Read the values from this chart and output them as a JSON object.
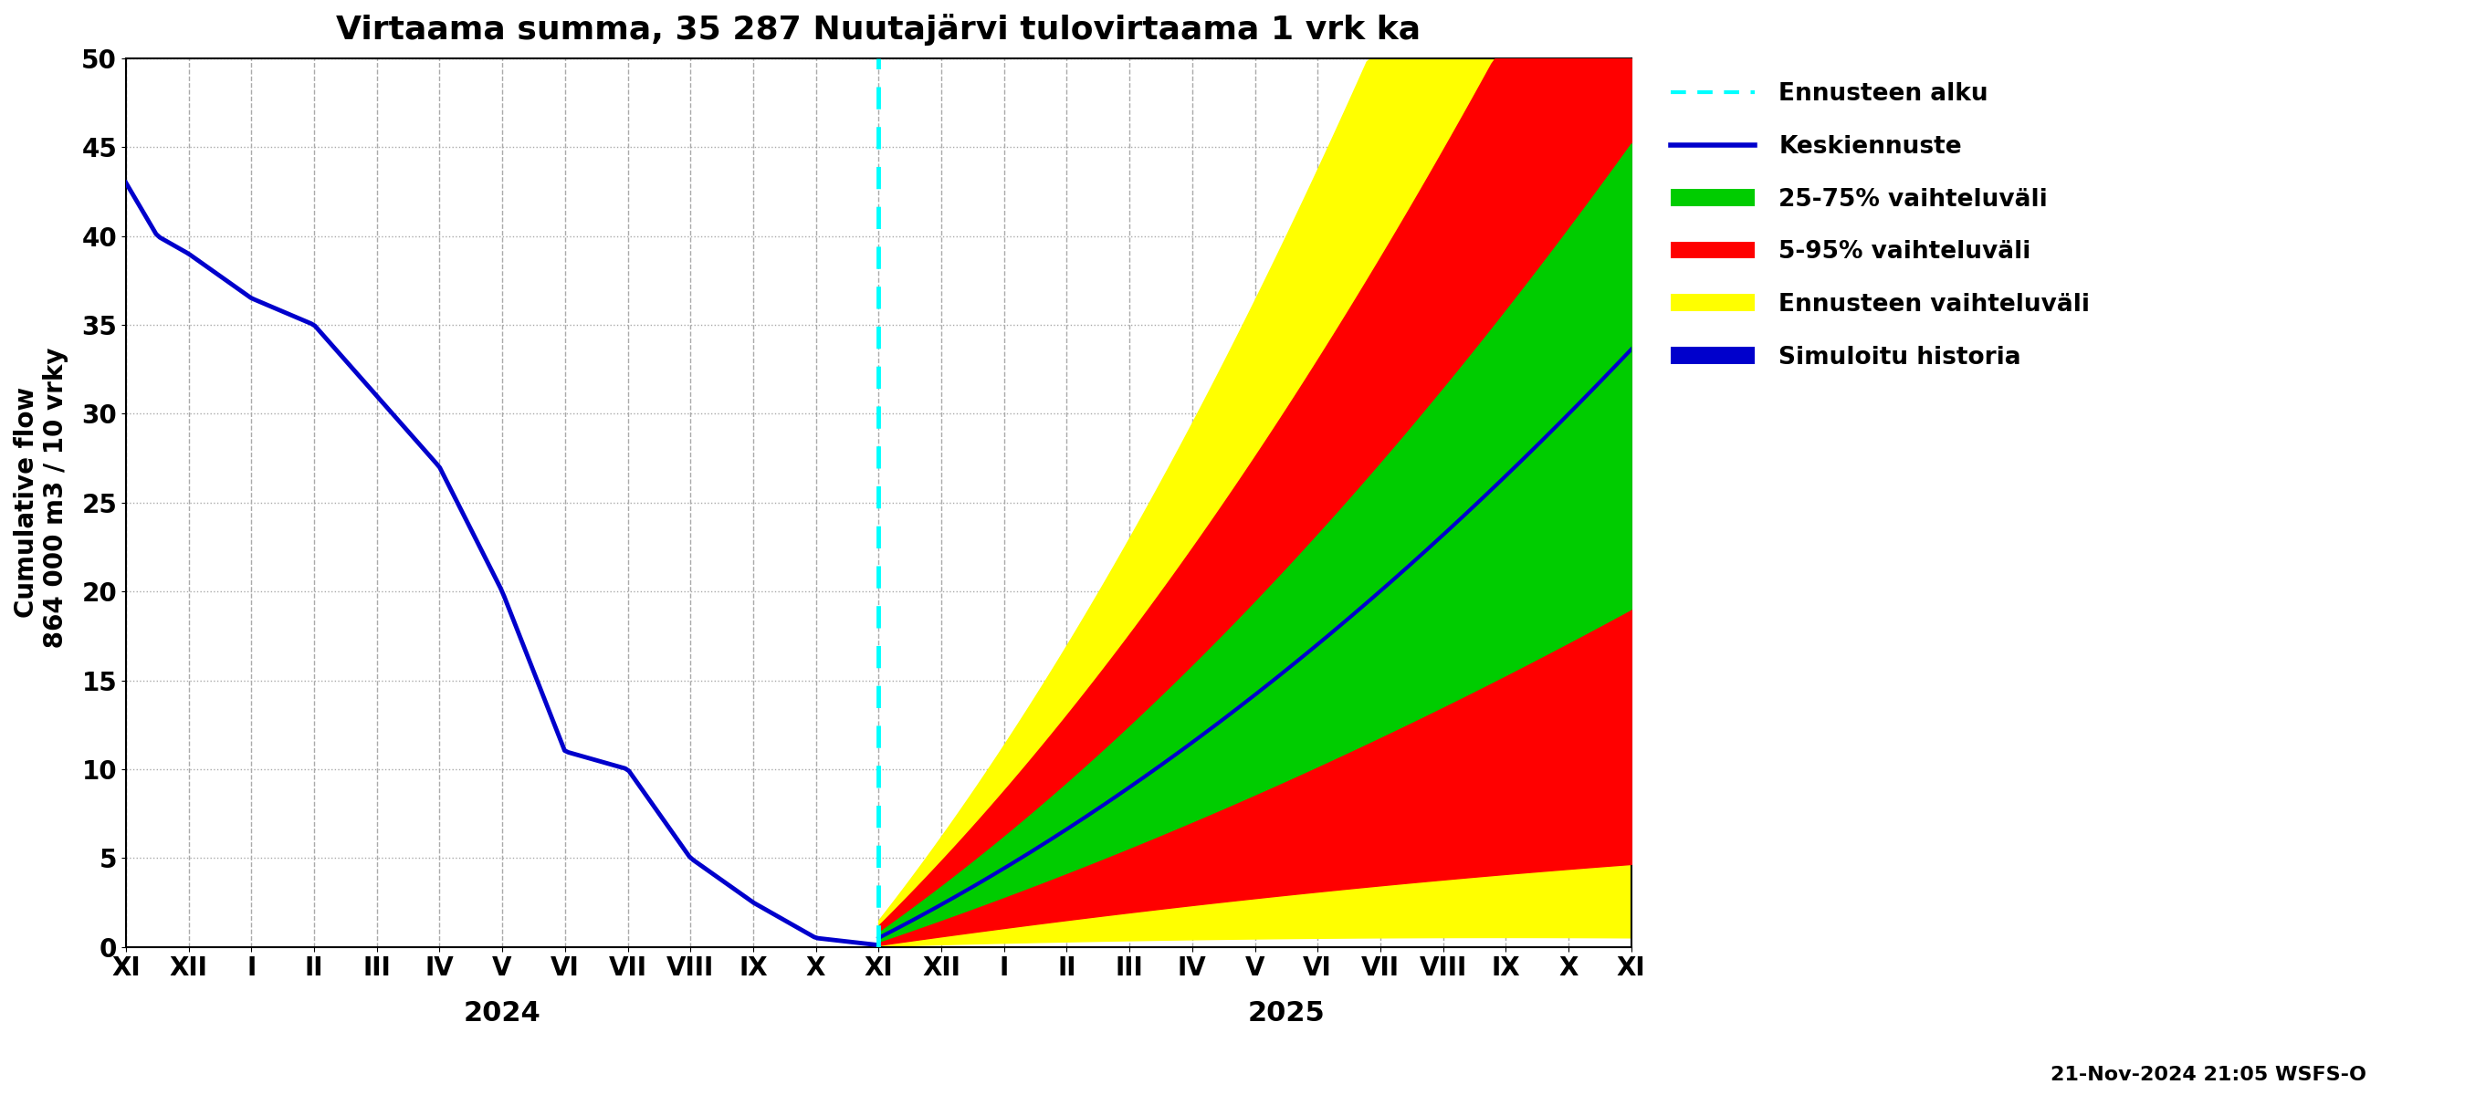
{
  "title": "Virtaama summa, 35 287 Nuutajärvi tulovirtaama 1 vrk ka",
  "ylabel": "Cumulative flow\n 864 000 m3 / 10 vrky",
  "ylim": [
    0,
    50
  ],
  "yticks": [
    0,
    5,
    10,
    15,
    20,
    25,
    30,
    35,
    40,
    45,
    50
  ],
  "month_labels": [
    "XI",
    "XII",
    "I",
    "II",
    "III",
    "IV",
    "V",
    "VI",
    "VII",
    "VIII",
    "IX",
    "X",
    "XI",
    "XII",
    "I",
    "II",
    "III",
    "IV",
    "V",
    "VI",
    "VII",
    "VIII",
    "IX",
    "X",
    "XI"
  ],
  "year_labels": [
    "2024",
    "2025"
  ],
  "bottom_text": "21-Nov-2024 21:05 WSFS-O",
  "history_color": "#0000cc",
  "forecast_line_color": "#0000cc",
  "cyan_color": "#00ffff",
  "yellow_color": "#ffff00",
  "red_color": "#ff0000",
  "green_color": "#00cc00",
  "background_color": "#ffffff",
  "grid_color": "#aaaaaa",
  "legend_labels": [
    "Ennusteen alku",
    "Keskiennuste",
    "25-75% vaihteluväli",
    "5-95% vaihteluväli",
    "Ennusteen vaihteluväli",
    "Simuloitu historia"
  ]
}
